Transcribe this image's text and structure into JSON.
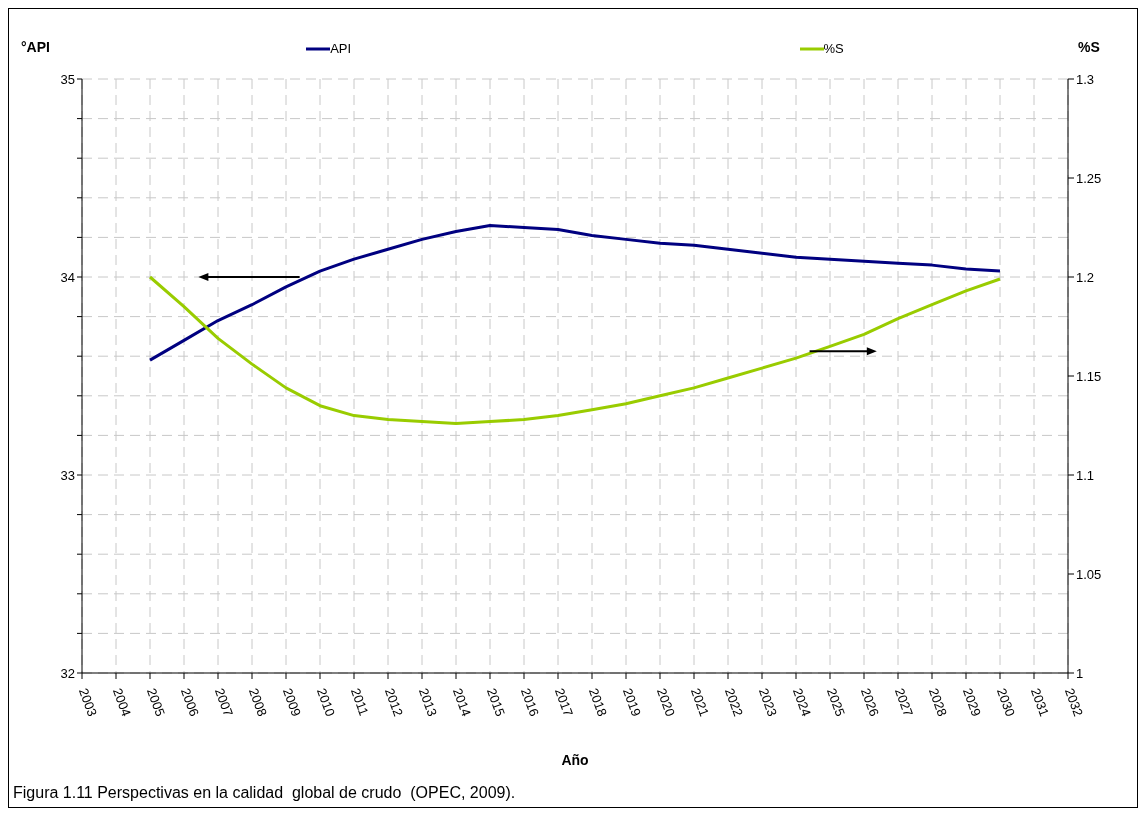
{
  "chart_data": {
    "type": "line",
    "xlabel": "Año",
    "ylabel": "°API",
    "y2label": "%S",
    "legend": "top",
    "annotations": [
      "Figura 1.11 Perspectivas en la calidad  global de crudo  (OPEC, 2009)."
    ],
    "x": [
      2005,
      2006,
      2007,
      2008,
      2009,
      2010,
      2011,
      2012,
      2013,
      2014,
      2015,
      2016,
      2017,
      2018,
      2019,
      2020,
      2021,
      2022,
      2023,
      2024,
      2025,
      2026,
      2027,
      2028,
      2029,
      2030
    ],
    "series": [
      {
        "name": "API",
        "color": "#000080",
        "values": [
          33.58,
          33.68,
          33.78,
          33.86,
          33.95,
          34.03,
          34.09,
          34.14,
          34.19,
          34.23,
          34.26,
          34.25,
          34.24,
          34.21,
          34.19,
          34.17,
          34.16,
          34.14,
          34.12,
          34.1,
          34.09,
          34.08,
          34.07,
          34.06,
          34.04,
          34.03
        ]
      },
      {
        "name": "%S",
        "color": "#99cc00",
        "axis": "y2",
        "values": [
          1.2,
          1.185,
          1.169,
          1.156,
          1.144,
          1.135,
          1.13,
          1.128,
          1.127,
          1.126,
          1.127,
          1.128,
          1.13,
          1.133,
          1.136,
          1.14,
          1.144,
          1.149,
          1.154,
          1.159,
          1.165,
          1.171,
          1.179,
          1.186,
          1.193,
          1.199
        ]
      }
    ],
    "xlim": [
      2003,
      2032
    ],
    "xticks": [
      2003,
      2004,
      2005,
      2006,
      2007,
      2008,
      2009,
      2010,
      2011,
      2012,
      2013,
      2014,
      2015,
      2016,
      2017,
      2018,
      2019,
      2020,
      2021,
      2022,
      2023,
      2024,
      2025,
      2026,
      2027,
      2028,
      2029,
      2030,
      2031,
      2032
    ],
    "ylim": [
      32,
      35
    ],
    "yticks": [
      32,
      {
        "value": 32.2,
        "label": null
      },
      {
        "value": 32.4,
        "label": null
      },
      {
        "value": 32.6,
        "label": null
      },
      {
        "value": 32.8,
        "label": null
      },
      33,
      {
        "value": 33.2,
        "label": null
      },
      {
        "value": 33.4,
        "label": null
      },
      {
        "value": 33.6,
        "label": null
      },
      {
        "value": 33.8,
        "label": null
      },
      34,
      {
        "value": 34.2,
        "label": null
      },
      {
        "value": 34.4,
        "label": null
      },
      {
        "value": 34.6,
        "label": null
      },
      {
        "value": 34.8,
        "label": null
      },
      35
    ],
    "y2lim": [
      1,
      1.3
    ],
    "y2ticks": [
      1,
      1.05,
      1.1,
      1.15,
      1.2,
      1.25,
      1.3
    ],
    "grid": true,
    "marker": "none",
    "line_style": "solid"
  }
}
